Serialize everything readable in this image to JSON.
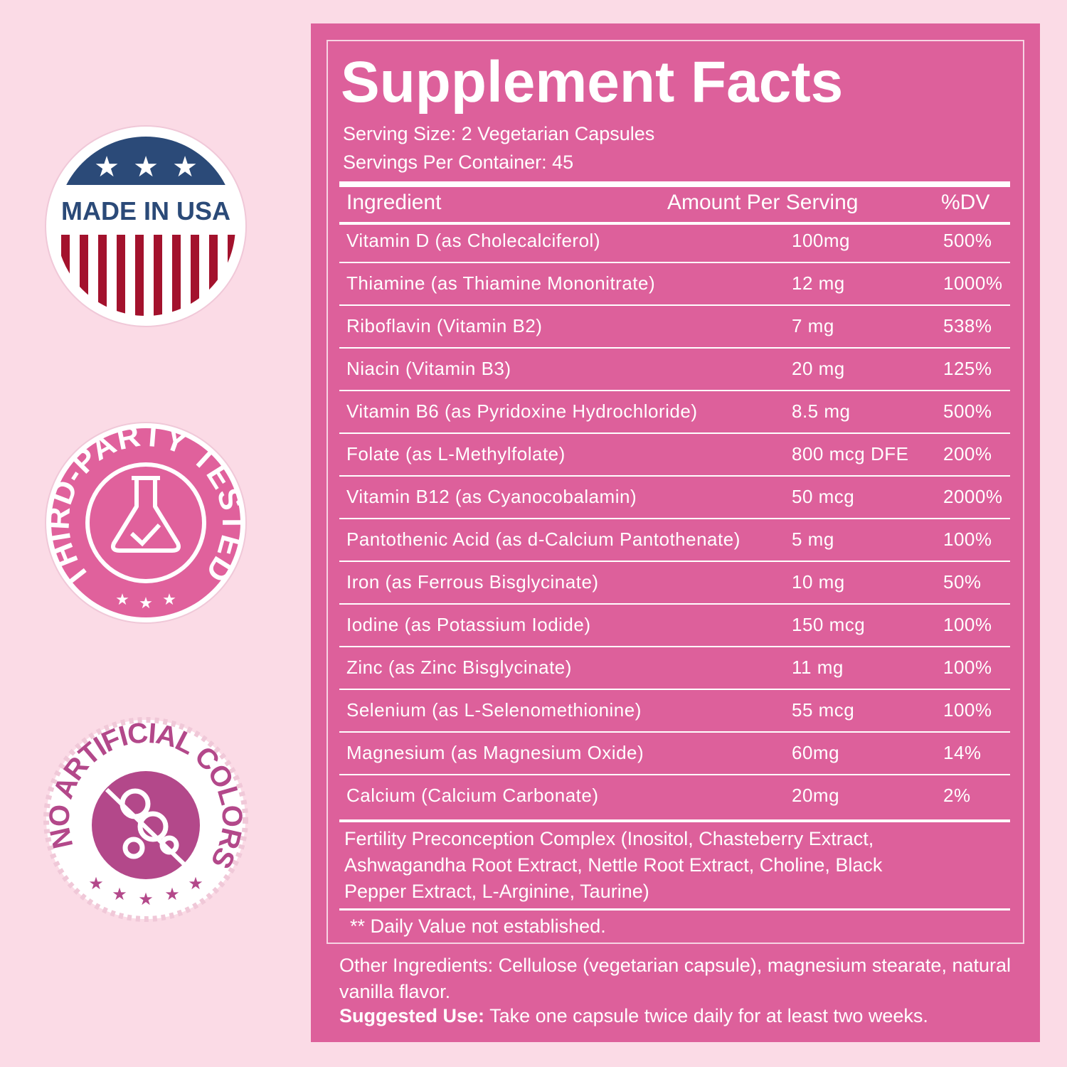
{
  "badges": [
    {
      "label": "MADE IN USA"
    },
    {
      "label": "THIRD-PARTY TESTED"
    },
    {
      "label": "NO ARTIFICIAL COLORS"
    }
  ],
  "label": {
    "title": "Supplement Facts",
    "serving_size": "Serving Size: 2 Vegetarian Capsules",
    "servings_per_container": "Servings Per Container: 45",
    "header": {
      "ingredient": "Ingredient",
      "amount": "Amount Per Serving",
      "dv": "%DV"
    },
    "rows": [
      {
        "ingredient": "Vitamin D (as Cholecalciferol)",
        "amount": "100mg",
        "dv": "500%"
      },
      {
        "ingredient": "Thiamine (as Thiamine Mononitrate)",
        "amount": "12 mg",
        "dv": "1000%"
      },
      {
        "ingredient": "Riboflavin (Vitamin B2)",
        "amount": "7 mg",
        "dv": "538%"
      },
      {
        "ingredient": "Niacin (Vitamin B3)",
        "amount": "20 mg",
        "dv": "125%"
      },
      {
        "ingredient": "Vitamin B6 (as Pyridoxine Hydrochloride)",
        "amount": "8.5 mg",
        "dv": "500%"
      },
      {
        "ingredient": "Folate (as L-Methylfolate)",
        "amount": "800 mcg DFE",
        "dv": "200%"
      },
      {
        "ingredient": "Vitamin B12 (as Cyanocobalamin)",
        "amount": "50 mcg",
        "dv": "2000%"
      },
      {
        "ingredient": "Pantothenic Acid (as d-Calcium Pantothenate)",
        "amount": "5 mg",
        "dv": "100%"
      },
      {
        "ingredient": "Iron (as Ferrous Bisglycinate)",
        "amount": "10 mg",
        "dv": "50%"
      },
      {
        "ingredient": "Iodine (as Potassium Iodide)",
        "amount": "150 mcg",
        "dv": "100%"
      },
      {
        "ingredient": "Zinc (as Zinc Bisglycinate)",
        "amount": "11 mg",
        "dv": "100%"
      },
      {
        "ingredient": "Selenium (as L-Selenomethionine)",
        "amount": "55 mcg",
        "dv": "100%"
      },
      {
        "ingredient": "Magnesium (as Magnesium Oxide)",
        "amount": "60mg",
        "dv": "14%"
      },
      {
        "ingredient": "Calcium (Calcium Carbonate)",
        "amount": "20mg",
        "dv": "2%"
      }
    ],
    "complex": "Fertility Preconception Complex (Inositol, Chasteberry Extract, Ashwagandha Root Extract, Nettle Root Extract, Choline, Black Pepper Extract, L-Arginine, Taurine)",
    "footnote": "** Daily Value not established.",
    "other_ingredients": "Other Ingredients: Cellulose (vegetarian capsule), magnesium stearate, natural vanilla flavor.",
    "suggested_use_label": "Suggested Use:",
    "suggested_use": "Take one capsule twice daily for at least two weeks."
  }
}
